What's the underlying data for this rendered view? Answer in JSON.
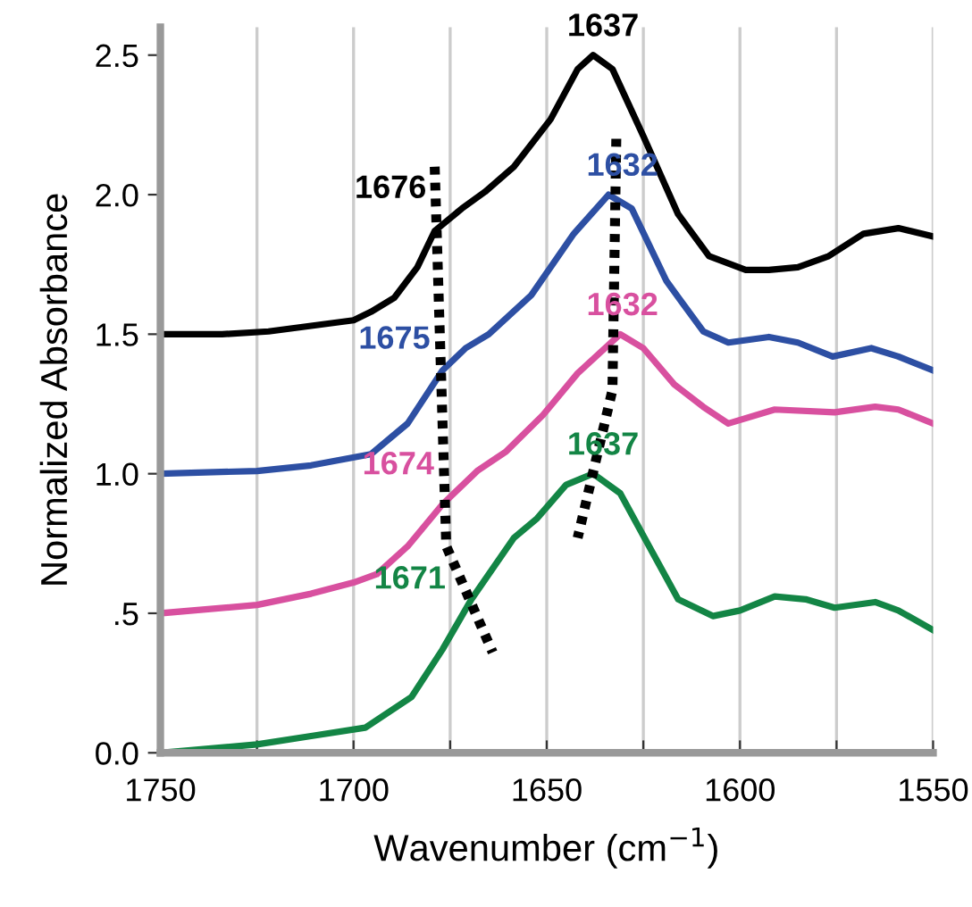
{
  "chart_data": {
    "type": "line",
    "xlabel": "Wavenumber (cm$^{−1}$)",
    "ylabel": "Normalized Absorbance",
    "xlim": [
      1750,
      1550
    ],
    "ylim": [
      0,
      2.6
    ],
    "xticks": [
      1750,
      {
        "value": 1725,
        "label": null
      },
      1700,
      {
        "value": 1675,
        "label": null
      },
      1650,
      {
        "value": 1625,
        "label": null
      },
      1600,
      {
        "value": 1575,
        "label": null
      },
      1550
    ],
    "yticks": [
      {
        "value": 0,
        "label": "0.0"
      },
      {
        "value": 0.5,
        "label": ".5"
      },
      {
        "value": 1.0,
        "label": "1.0"
      },
      {
        "value": 1.5,
        "label": "1.5"
      },
      {
        "value": 2.0,
        "label": "2.0"
      },
      {
        "value": 2.5,
        "label": "2.5"
      }
    ],
    "grid": "x",
    "legend": false,
    "marker": "none",
    "series": [
      {
        "color": "#000000",
        "x": [
          1750,
          1734,
          1722,
          1711,
          1700,
          1695.5,
          1689.5,
          1683.5,
          1679,
          1672,
          1666,
          1658.5,
          1649,
          1642,
          1638,
          1633,
          1625,
          1616,
          1608,
          1598.5,
          1592.5,
          1585,
          1577,
          1568,
          1559,
          1550
        ],
        "values": [
          1.5,
          1.5,
          1.51,
          1.53,
          1.55,
          1.58,
          1.63,
          1.74,
          1.87,
          1.95,
          2.01,
          2.1,
          2.27,
          2.45,
          2.5,
          2.45,
          2.21,
          1.93,
          1.78,
          1.73,
          1.73,
          1.74,
          1.78,
          1.86,
          1.88,
          1.85
        ]
      },
      {
        "color": "#2d4fa3",
        "x": [
          1750,
          1725,
          1711,
          1695.5,
          1686,
          1677,
          1671,
          1665,
          1654,
          1643,
          1634,
          1628,
          1619,
          1609.5,
          1603,
          1592.5,
          1585,
          1576,
          1566,
          1559,
          1550
        ],
        "values": [
          1.0,
          1.01,
          1.03,
          1.07,
          1.18,
          1.37,
          1.45,
          1.5,
          1.64,
          1.86,
          2.0,
          1.95,
          1.69,
          1.51,
          1.47,
          1.49,
          1.47,
          1.42,
          1.45,
          1.42,
          1.37
        ]
      },
      {
        "color": "#d8509f",
        "x": [
          1750,
          1725,
          1711,
          1700,
          1694,
          1686,
          1677,
          1668,
          1660.5,
          1651,
          1642,
          1631,
          1625,
          1617,
          1609.5,
          1603,
          1591,
          1575.5,
          1565,
          1559,
          1550
        ],
        "values": [
          0.5,
          0.53,
          0.57,
          0.61,
          0.64,
          0.74,
          0.89,
          1.01,
          1.08,
          1.21,
          1.36,
          1.5,
          1.45,
          1.32,
          1.24,
          1.18,
          1.23,
          1.22,
          1.24,
          1.23,
          1.18
        ]
      },
      {
        "color": "#138545",
        "x": [
          1750,
          1725,
          1711,
          1697,
          1685,
          1677,
          1669.5,
          1658.5,
          1652.5,
          1645,
          1638,
          1631,
          1623.5,
          1616,
          1607,
          1600,
          1591,
          1583,
          1575.5,
          1565,
          1559,
          1550
        ],
        "values": [
          0.0,
          0.03,
          0.06,
          0.09,
          0.2,
          0.37,
          0.55,
          0.77,
          0.84,
          0.96,
          1.0,
          0.93,
          0.74,
          0.55,
          0.49,
          0.51,
          0.56,
          0.55,
          0.52,
          0.54,
          0.51,
          0.44
        ]
      },
      {
        "color": "#000000",
        "line_style": "dotted",
        "x": [
          1679,
          1676,
          1664
        ],
        "values": [
          2.1,
          0.74,
          0.36
        ]
      },
      {
        "color": "#000000",
        "line_style": "dotted",
        "x": [
          1632,
          1633,
          1642
        ],
        "values": [
          2.2,
          1.3,
          0.77
        ]
      }
    ],
    "annotations": [
      {
        "text": "1637",
        "x": 1637,
        "y": 2.5
      },
      {
        "text": "1676",
        "x": 1676,
        "y": 1.92
      },
      {
        "text": "1632",
        "x": 1632,
        "y": 2.0
      },
      {
        "text": "1675",
        "x": 1675,
        "y": 1.38
      },
      {
        "text": "1632",
        "x": 1632,
        "y": 1.5
      },
      {
        "text": "1674",
        "x": 1674,
        "y": 0.93
      },
      {
        "text": "1637",
        "x": 1637,
        "y": 1.0
      },
      {
        "text": "1671",
        "x": 1671,
        "y": 0.52
      }
    ]
  }
}
